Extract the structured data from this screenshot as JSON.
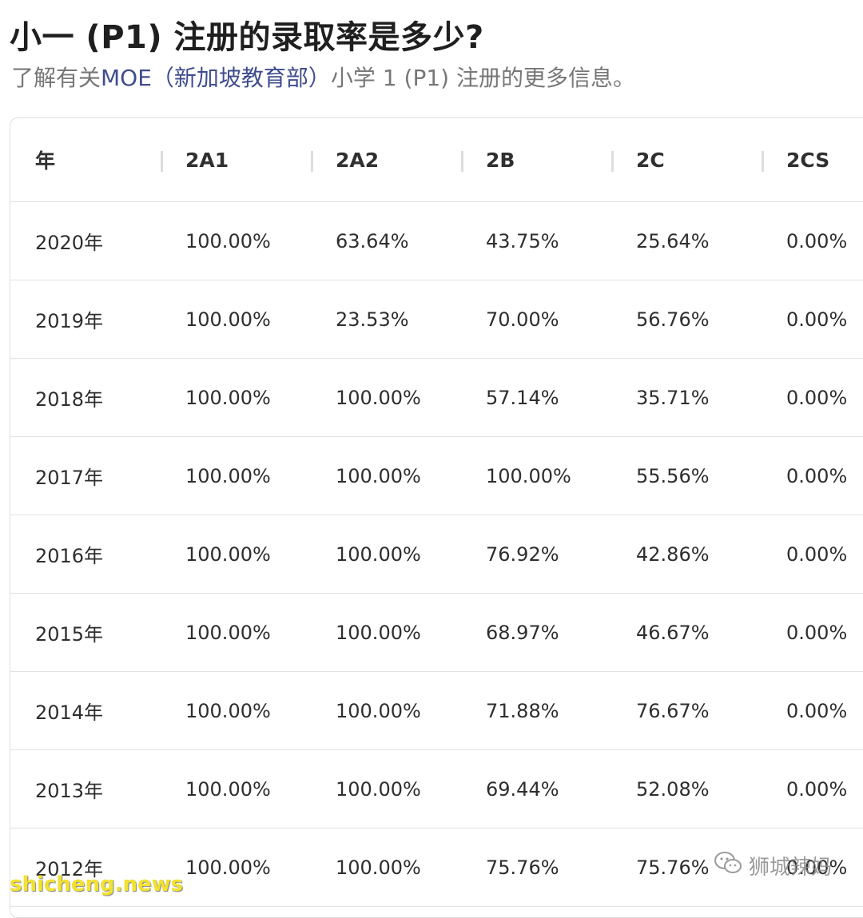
{
  "page": {
    "title": "小一 (P1) 注册的录取率是多少?",
    "subtitle_prefix": "了解有关",
    "subtitle_link": "MOE（新加坡教育部）",
    "subtitle_suffix": "小学 1 (P1) 注册的更多信息。"
  },
  "table": {
    "columns": [
      "年",
      "2A1",
      "2A2",
      "2B",
      "2C",
      "2CS"
    ],
    "rows": [
      [
        "2020年",
        "100.00%",
        "63.64%",
        "43.75%",
        "25.64%",
        "0.00%"
      ],
      [
        "2019年",
        "100.00%",
        "23.53%",
        "70.00%",
        "56.76%",
        "0.00%"
      ],
      [
        "2018年",
        "100.00%",
        "100.00%",
        "57.14%",
        "35.71%",
        "0.00%"
      ],
      [
        "2017年",
        "100.00%",
        "100.00%",
        "100.00%",
        "55.56%",
        "0.00%"
      ],
      [
        "2016年",
        "100.00%",
        "100.00%",
        "76.92%",
        "42.86%",
        "0.00%"
      ],
      [
        "2015年",
        "100.00%",
        "100.00%",
        "68.97%",
        "46.67%",
        "0.00%"
      ],
      [
        "2014年",
        "100.00%",
        "100.00%",
        "71.88%",
        "76.67%",
        "0.00%"
      ],
      [
        "2013年",
        "100.00%",
        "100.00%",
        "69.44%",
        "52.08%",
        "0.00%"
      ],
      [
        "2012年",
        "100.00%",
        "100.00%",
        "75.76%",
        "75.76%",
        "0.00%"
      ]
    ]
  },
  "watermarks": {
    "left": "shicheng.news",
    "right": "狮城辣妈",
    "right_icon": "wechat-icon"
  },
  "colors": {
    "link": "#3f4c8f",
    "watermark_left": "#f2e12e"
  }
}
